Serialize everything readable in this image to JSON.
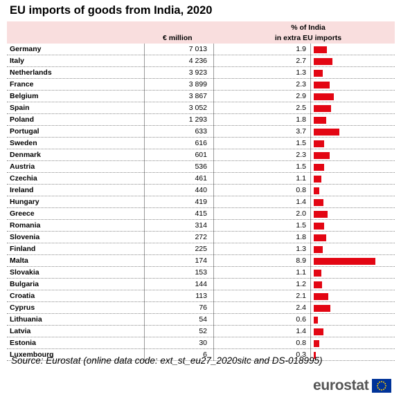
{
  "title": "EU imports of goods from India, 2020",
  "header": {
    "col_value": "€ million",
    "col_share_line1": "% of India",
    "col_share_line2": "in extra EU imports"
  },
  "source": "Source: Eurostat (online data code: ext_st_eu27_2020sitc and DS-018995)",
  "logo_text": "eurostat",
  "colors": {
    "bar": "#e30613",
    "header_bg": "#f9dede",
    "flag": "#003399",
    "stars": "#ffcc00"
  },
  "chart_data": {
    "type": "table",
    "title": "EU imports of goods from India, 2020",
    "columns": [
      "€ million",
      "% of India in extra EU imports"
    ],
    "categories": [
      "Germany",
      "Italy",
      "Netherlands",
      "France",
      "Belgium",
      "Spain",
      "Poland",
      "Portugal",
      "Sweden",
      "Denmark",
      "Austria",
      "Czechia",
      "Ireland",
      "Hungary",
      "Greece",
      "Romania",
      "Slovenia",
      "Finland",
      "Malta",
      "Slovakia",
      "Bulgaria",
      "Croatia",
      "Cyprus",
      "Lithuania",
      "Latvia",
      "Estonia",
      "Luxembourg"
    ],
    "values_label": [
      "7 013",
      "4 236",
      "3 923",
      "3 899",
      "3 867",
      "3 052",
      "1 293",
      "633",
      "616",
      "601",
      "536",
      "461",
      "440",
      "419",
      "415",
      "314",
      "272",
      "225",
      "174",
      "153",
      "144",
      "113",
      "76",
      "54",
      "52",
      "30",
      "6"
    ],
    "share_label": [
      "1.9",
      "2.7",
      "1.3",
      "2.3",
      "2.9",
      "2.5",
      "1.8",
      "3.7",
      "1.5",
      "2.3",
      "1.5",
      "1.1",
      "0.8",
      "1.4",
      "2.0",
      "1.5",
      "1.8",
      "1.3",
      "8.9",
      "1.1",
      "1.2",
      "2.1",
      "2.4",
      "0.6",
      "1.4",
      "0.8",
      "0.3"
    ],
    "bar_values": [
      1.9,
      2.7,
      1.3,
      2.3,
      2.9,
      2.5,
      1.8,
      3.7,
      1.5,
      2.3,
      1.5,
      1.1,
      0.8,
      1.4,
      2.0,
      1.5,
      1.8,
      1.3,
      8.9,
      1.1,
      1.2,
      2.1,
      2.4,
      0.6,
      1.4,
      0.8,
      0.3
    ],
    "bar_max": 8.9
  }
}
